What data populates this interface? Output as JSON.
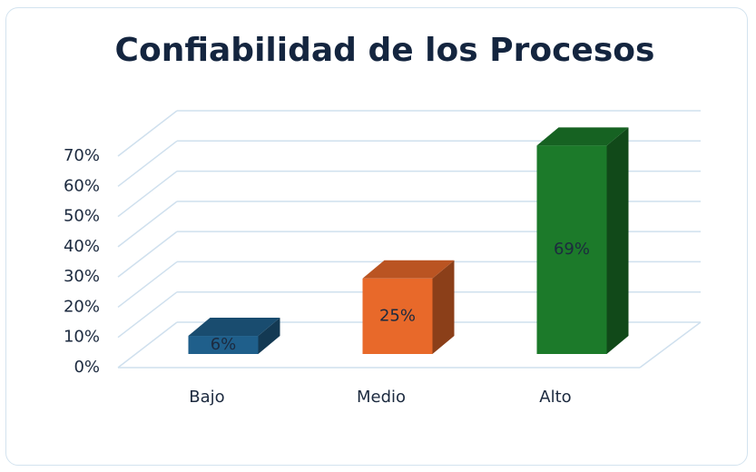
{
  "chart_data": {
    "type": "bar3d",
    "title": "Confiabilidad de los Procesos",
    "categories": [
      "Bajo",
      "Medio",
      "Alto"
    ],
    "values": [
      6,
      25,
      69
    ],
    "value_labels": [
      "6%",
      "25%",
      "69%"
    ],
    "colors": [
      "#1f5f8b",
      "#e8692a",
      "#1c7a2a"
    ],
    "ylim": [
      0,
      70
    ],
    "yticks": [
      {
        "value": 0,
        "label": "0%"
      },
      {
        "value": 10,
        "label": "10%"
      },
      {
        "value": 20,
        "label": "20%"
      },
      {
        "value": 30,
        "label": "30%"
      },
      {
        "value": 40,
        "label": "40%"
      },
      {
        "value": 50,
        "label": "50%"
      },
      {
        "value": 60,
        "label": "60%"
      },
      {
        "value": 70,
        "label": "70%"
      }
    ],
    "grid": true
  }
}
